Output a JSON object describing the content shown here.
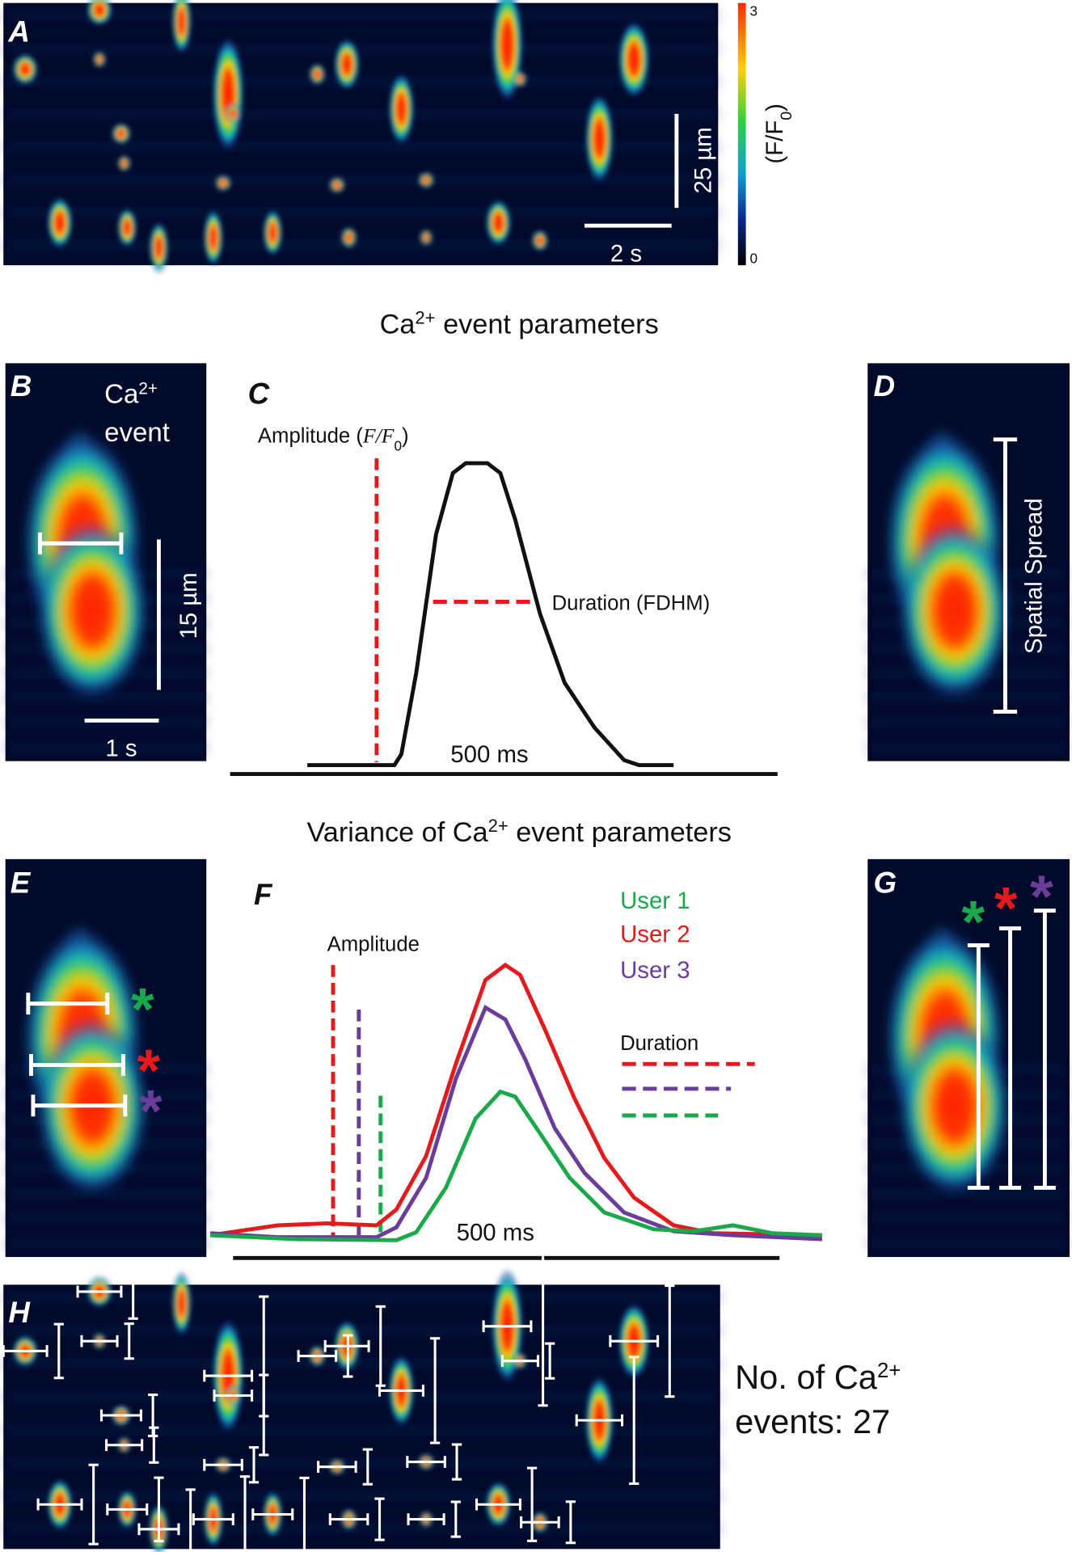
{
  "panel_labels": [
    "A",
    "B",
    "C",
    "D",
    "E",
    "F",
    "G",
    "H"
  ],
  "panel_a": {
    "colorbar_label": {
      "main": "(F/F",
      "sub": "0",
      "close": ")"
    },
    "colorbar_ticks": [
      "3",
      "0"
    ],
    "scale_y": "25 µm",
    "scale_x": "2 s"
  },
  "section_1_title": {
    "main": "Ca",
    "sup": "2+",
    "rest": " event parameters"
  },
  "panel_b": {
    "line1": {
      "main": "Ca",
      "sup": "2+"
    },
    "line2": "event",
    "scale_y": "15 µm",
    "scale_x": "1 s"
  },
  "panel_c": {
    "amplitude": {
      "text": "Amplitude (",
      "math": "F/F",
      "sub": "0",
      "close": ")"
    },
    "duration": "Duration (FDHM)",
    "time_scale": "500 ms"
  },
  "panel_d": {
    "label": "Spatial Spread"
  },
  "section_2_title": {
    "main": "Variance of  Ca",
    "sup": "2+",
    "rest": " event parameters"
  },
  "panel_f": {
    "users": [
      "User 1",
      "User 2",
      "User 3"
    ],
    "amplitude": "Amplitude",
    "duration": "Duration",
    "time_scale": "500 ms"
  },
  "panel_h": {
    "line1": {
      "main": "No. of Ca",
      "sup": "2+"
    },
    "line2": "events: 27"
  }
}
